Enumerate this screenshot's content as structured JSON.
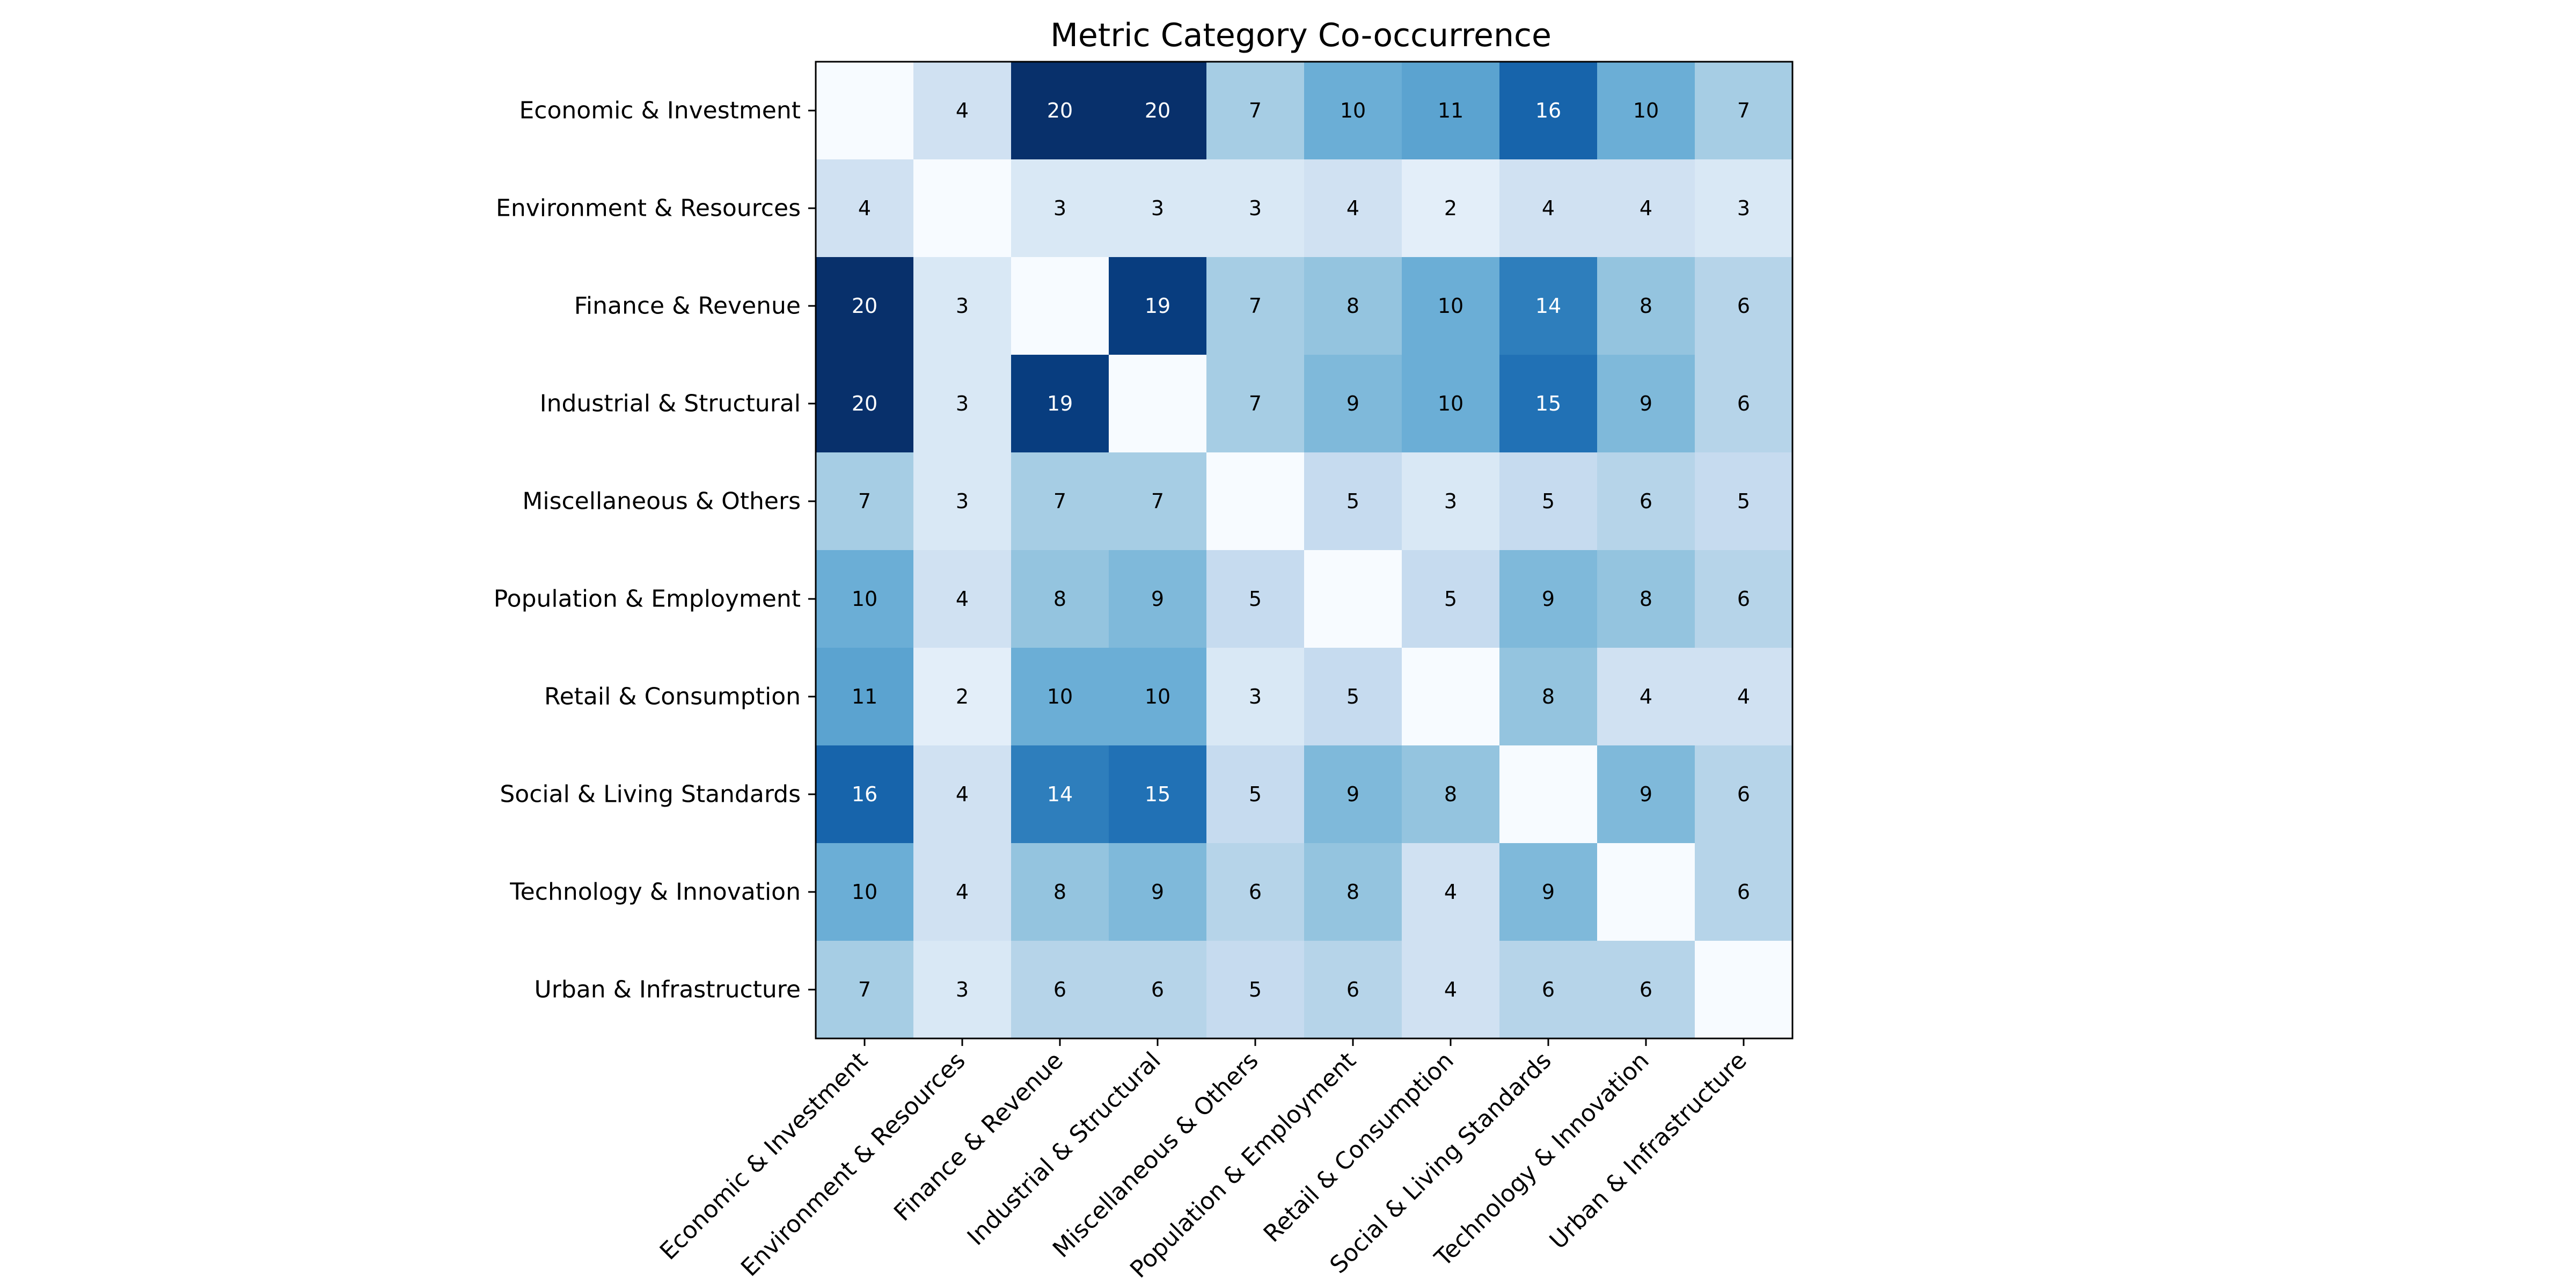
{
  "chart_data": {
    "type": "heatmap",
    "title": "Metric Category Co-occurrence",
    "xlabel": "",
    "ylabel": "",
    "categories": [
      "Economic & Investment",
      "Environment & Resources",
      "Finance & Revenue",
      "Industrial & Structural",
      "Miscellaneous & Others",
      "Population & Employment",
      "Retail & Consumption",
      "Social & Living Standards",
      "Technology & Innovation",
      "Urban & Infrastructure"
    ],
    "values": [
      [
        0,
        4,
        20,
        20,
        7,
        10,
        11,
        16,
        10,
        7
      ],
      [
        4,
        0,
        3,
        3,
        3,
        4,
        2,
        4,
        4,
        3
      ],
      [
        20,
        3,
        0,
        19,
        7,
        8,
        10,
        14,
        8,
        6
      ],
      [
        20,
        3,
        19,
        0,
        7,
        9,
        10,
        15,
        9,
        6
      ],
      [
        7,
        3,
        7,
        7,
        0,
        5,
        3,
        5,
        6,
        5
      ],
      [
        10,
        4,
        8,
        9,
        5,
        0,
        5,
        9,
        8,
        6
      ],
      [
        11,
        2,
        10,
        10,
        3,
        5,
        0,
        8,
        4,
        4
      ],
      [
        16,
        4,
        14,
        15,
        5,
        9,
        8,
        0,
        9,
        6
      ],
      [
        10,
        4,
        8,
        9,
        6,
        8,
        4,
        9,
        0,
        6
      ],
      [
        7,
        3,
        6,
        6,
        5,
        6,
        4,
        6,
        6,
        0
      ]
    ],
    "diagonal_labels_shown": false,
    "color_scale": "Blues",
    "vmin": 0,
    "vmax": 20,
    "colors": {
      "low": "#f7fbff",
      "high": "#08306b",
      "text_dark": "#000000",
      "text_light": "#ffffff"
    }
  }
}
